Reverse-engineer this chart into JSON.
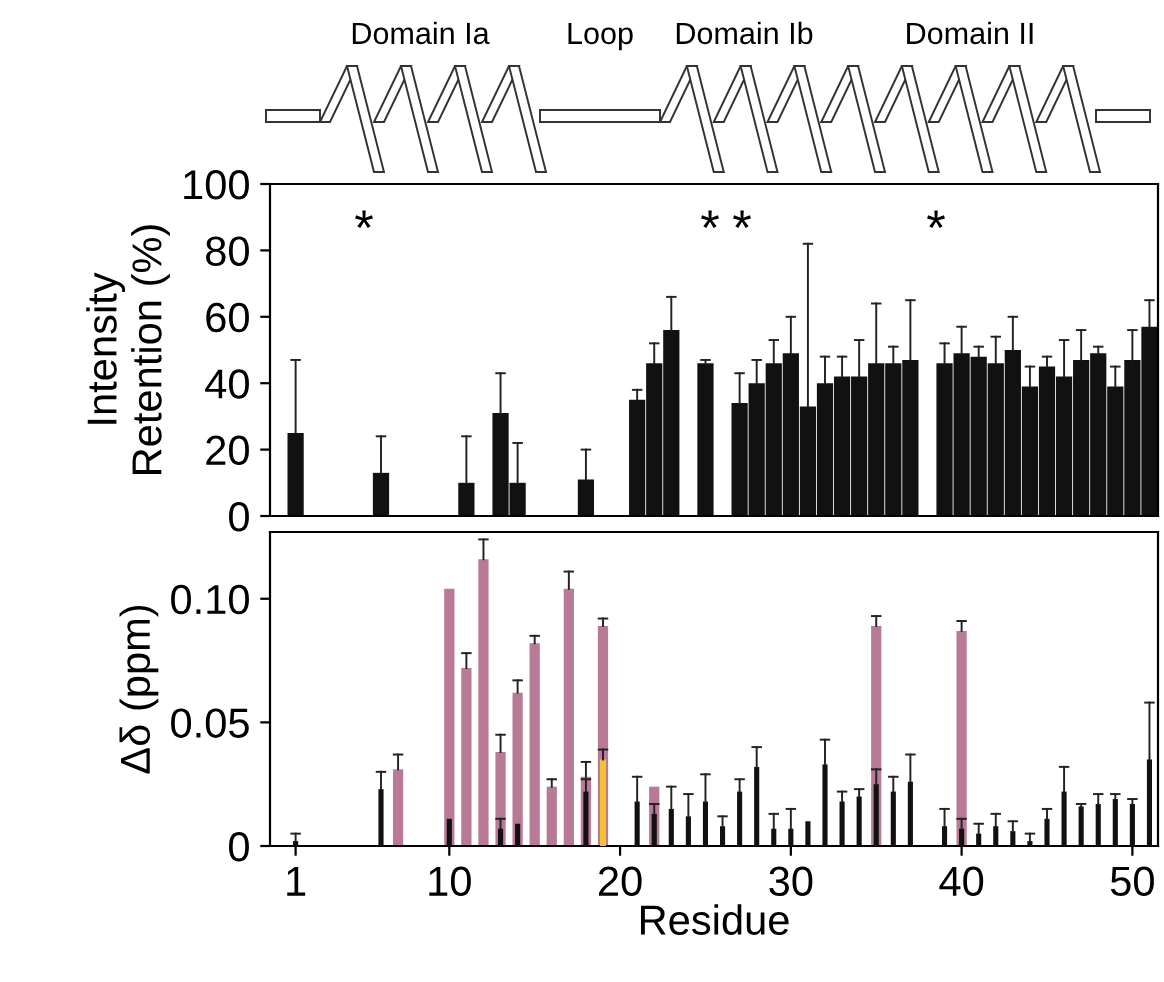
{
  "chart_data": [
    {
      "type": "bar",
      "ylabel": "Intensity\nRetention (%)",
      "tick_labels": "y",
      "annotations": [
        "Domain Ia",
        "Loop",
        "Domain Ib",
        "Domain II",
        "*",
        "*",
        "*",
        "*"
      ],
      "x": [
        1,
        2,
        3,
        4,
        5,
        6,
        7,
        8,
        9,
        10,
        11,
        12,
        13,
        14,
        15,
        16,
        17,
        18,
        19,
        20,
        21,
        22,
        23,
        24,
        25,
        26,
        27,
        28,
        29,
        30,
        31,
        32,
        33,
        34,
        35,
        36,
        37,
        38,
        39,
        40,
        41,
        42,
        43,
        44,
        45,
        46,
        47,
        48,
        49,
        50,
        51
      ],
      "series": [
        {
          "color": "#111111",
          "values": [
            25,
            0,
            0,
            0,
            null,
            13,
            0,
            0,
            0,
            0,
            10,
            0,
            31,
            10,
            0,
            0,
            0,
            11,
            0,
            0,
            35,
            46,
            56,
            null,
            46,
            null,
            34,
            40,
            46,
            49,
            33,
            40,
            42,
            42,
            46,
            46,
            47,
            null,
            46,
            49,
            48,
            46,
            50,
            39,
            45,
            42,
            47,
            49,
            39,
            47,
            57
          ],
          "errors": [
            [
              25,
              47
            ],
            null,
            null,
            null,
            null,
            [
              13,
              24
            ],
            null,
            null,
            null,
            null,
            [
              10,
              24
            ],
            null,
            [
              31,
              43
            ],
            [
              10,
              22
            ],
            null,
            null,
            null,
            [
              11,
              20
            ],
            null,
            null,
            [
              35,
              38
            ],
            [
              46,
              52
            ],
            [
              56,
              66
            ],
            null,
            [
              46,
              47
            ],
            null,
            [
              34,
              43
            ],
            [
              40,
              47
            ],
            [
              46,
              53
            ],
            [
              49,
              60
            ],
            [
              33,
              82
            ],
            [
              40,
              48
            ],
            [
              42,
              48
            ],
            [
              42,
              53
            ],
            [
              46,
              64
            ],
            [
              46,
              51
            ],
            [
              47,
              65
            ],
            null,
            [
              46,
              52
            ],
            [
              49,
              57
            ],
            [
              48,
              51
            ],
            [
              46,
              54
            ],
            [
              50,
              60
            ],
            [
              39,
              45
            ],
            [
              45,
              48
            ],
            [
              42,
              53
            ],
            [
              47,
              56
            ],
            [
              49,
              51
            ],
            [
              39,
              45
            ],
            [
              47,
              56
            ],
            [
              57,
              65
            ]
          ]
        }
      ],
      "xlim": [
        -0.5,
        51.5
      ],
      "ylim": [
        0,
        100
      ],
      "yticks": [
        0,
        20,
        40,
        60,
        80,
        100
      ],
      "grid": false,
      "legend": false
    },
    {
      "type": "bar",
      "xlabel": "Residue",
      "ylabel": "Δδ (ppm)",
      "series": [
        {
          "color": "#b87a96",
          "x": [
            7,
            10,
            11,
            12,
            13,
            14,
            15,
            16,
            17,
            18,
            19,
            22,
            35,
            40
          ],
          "values": [
            0.031,
            0.104,
            0.072,
            0.116,
            0.038,
            0.062,
            0.082,
            0.024,
            0.104,
            0.028,
            0.089,
            0.024,
            0.089,
            0.087
          ],
          "errors": [
            [
              0.031,
              0.037
            ],
            null,
            [
              0.072,
              0.078
            ],
            [
              0.116,
              0.124
            ],
            [
              0.038,
              0.045
            ],
            [
              0.062,
              0.067
            ],
            [
              0.082,
              0.085
            ],
            [
              0.024,
              0.027
            ],
            [
              0.104,
              0.111
            ],
            [
              0.028,
              0.034
            ],
            [
              0.089,
              0.092
            ],
            null,
            [
              0.089,
              0.093
            ],
            [
              0.087,
              0.091
            ]
          ]
        },
        {
          "color": "#f2c233",
          "x": [
            19
          ],
          "values": [
            0.035
          ],
          "errors": [
            [
              0.035,
              0.039
            ]
          ]
        },
        {
          "color": "#111111",
          "x": [
            1,
            6,
            10,
            13,
            14,
            18,
            21,
            22,
            23,
            24,
            25,
            26,
            27,
            28,
            29,
            30,
            31,
            32,
            33,
            34,
            35,
            36,
            37,
            39,
            40,
            41,
            42,
            43,
            44,
            45,
            46,
            47,
            48,
            49,
            50,
            51
          ],
          "values": [
            0.002,
            0.023,
            0.011,
            0.007,
            0.009,
            0.022,
            0.018,
            0.013,
            0.015,
            0.012,
            0.018,
            0.008,
            0.022,
            0.032,
            0.007,
            0.007,
            0.01,
            0.033,
            0.018,
            0.02,
            0.025,
            0.022,
            0.026,
            0.008,
            0.007,
            0.005,
            0.008,
            0.006,
            0.002,
            0.011,
            0.022,
            0.016,
            0.017,
            0.019,
            0.017,
            0.035
          ],
          "errors": [
            [
              0.002,
              0.005
            ],
            [
              0.023,
              0.03
            ],
            null,
            [
              0.007,
              0.011
            ],
            null,
            [
              0.022,
              0.027
            ],
            [
              0.018,
              0.028
            ],
            [
              0.013,
              0.017
            ],
            [
              0.015,
              0.024
            ],
            [
              0.012,
              0.021
            ],
            [
              0.018,
              0.029
            ],
            [
              0.008,
              0.012
            ],
            [
              0.022,
              0.027
            ],
            [
              0.032,
              0.04
            ],
            [
              0.007,
              0.013
            ],
            [
              0.007,
              0.015
            ],
            null,
            [
              0.033,
              0.043
            ],
            [
              0.018,
              0.022
            ],
            [
              0.02,
              0.023
            ],
            [
              0.025,
              0.031
            ],
            [
              0.022,
              0.028
            ],
            [
              0.026,
              0.037
            ],
            [
              0.008,
              0.015
            ],
            [
              0.007,
              0.011
            ],
            [
              0.005,
              0.009
            ],
            [
              0.008,
              0.013
            ],
            [
              0.006,
              0.01
            ],
            [
              0.002,
              0.005
            ],
            [
              0.011,
              0.015
            ],
            [
              0.022,
              0.032
            ],
            [
              0.016,
              0.017
            ],
            [
              0.017,
              0.021
            ],
            [
              0.019,
              0.021
            ],
            [
              0.017,
              0.019
            ],
            [
              0.035,
              0.058
            ]
          ]
        }
      ],
      "xlim": [
        -0.5,
        51.5
      ],
      "xticks": [
        1,
        10,
        20,
        30,
        40,
        50
      ],
      "ylim": [
        0,
        0.127
      ],
      "yticks": [
        0,
        0.05,
        {
          "value": 0.1,
          "label": "0.10"
        }
      ],
      "grid": false,
      "legend": false
    }
  ]
}
